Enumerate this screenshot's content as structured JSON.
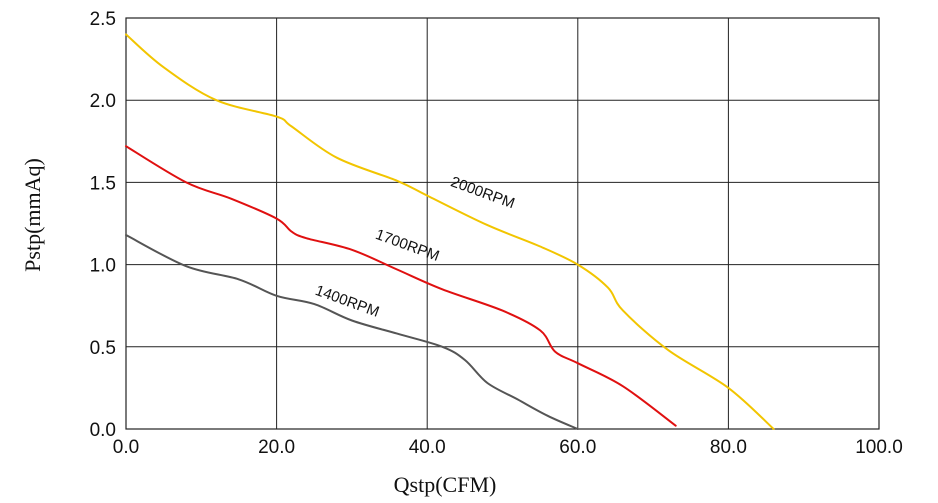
{
  "chart_data": {
    "type": "line",
    "xlabel": "Qstp(CFM)",
    "ylabel": "Pstp(mmAq)",
    "xlim": [
      0,
      100
    ],
    "ylim": [
      0,
      2.5
    ],
    "xticks": [
      0,
      20,
      40,
      60,
      80,
      100
    ],
    "xtick_labels": [
      "0.0",
      "20.0",
      "40.0",
      "60.0",
      "80.0",
      "100.0"
    ],
    "yticks": [
      0,
      0.5,
      1.0,
      1.5,
      2.0,
      2.5
    ],
    "ytick_labels": [
      "0.0",
      "0.5",
      "1.0",
      "1.5",
      "2.0",
      "2.5"
    ],
    "grid": true,
    "series": [
      {
        "name": "2000RPM",
        "color": "#f2c500",
        "x": [
          0,
          5,
          12,
          20,
          22,
          28,
          36,
          40,
          48,
          55,
          60,
          64,
          66,
          72,
          80,
          86
        ],
        "y": [
          2.4,
          2.2,
          2.0,
          1.9,
          1.84,
          1.65,
          1.51,
          1.42,
          1.24,
          1.11,
          1.0,
          0.86,
          0.72,
          0.48,
          0.25,
          0.0
        ]
      },
      {
        "name": "1700RPM",
        "color": "#e01010",
        "x": [
          0,
          8,
          14,
          20,
          22,
          24,
          30,
          36,
          42,
          50,
          55,
          57,
          60,
          66,
          73
        ],
        "y": [
          1.72,
          1.5,
          1.4,
          1.28,
          1.2,
          1.16,
          1.09,
          0.97,
          0.85,
          0.72,
          0.6,
          0.47,
          0.4,
          0.26,
          0.02
        ]
      },
      {
        "name": "1400RPM",
        "color": "#555555",
        "x": [
          0,
          8,
          15,
          20,
          25,
          30,
          36,
          42,
          45,
          48,
          52,
          56,
          60
        ],
        "y": [
          1.18,
          0.99,
          0.91,
          0.81,
          0.76,
          0.66,
          0.58,
          0.5,
          0.42,
          0.28,
          0.18,
          0.08,
          0.0
        ]
      }
    ]
  }
}
